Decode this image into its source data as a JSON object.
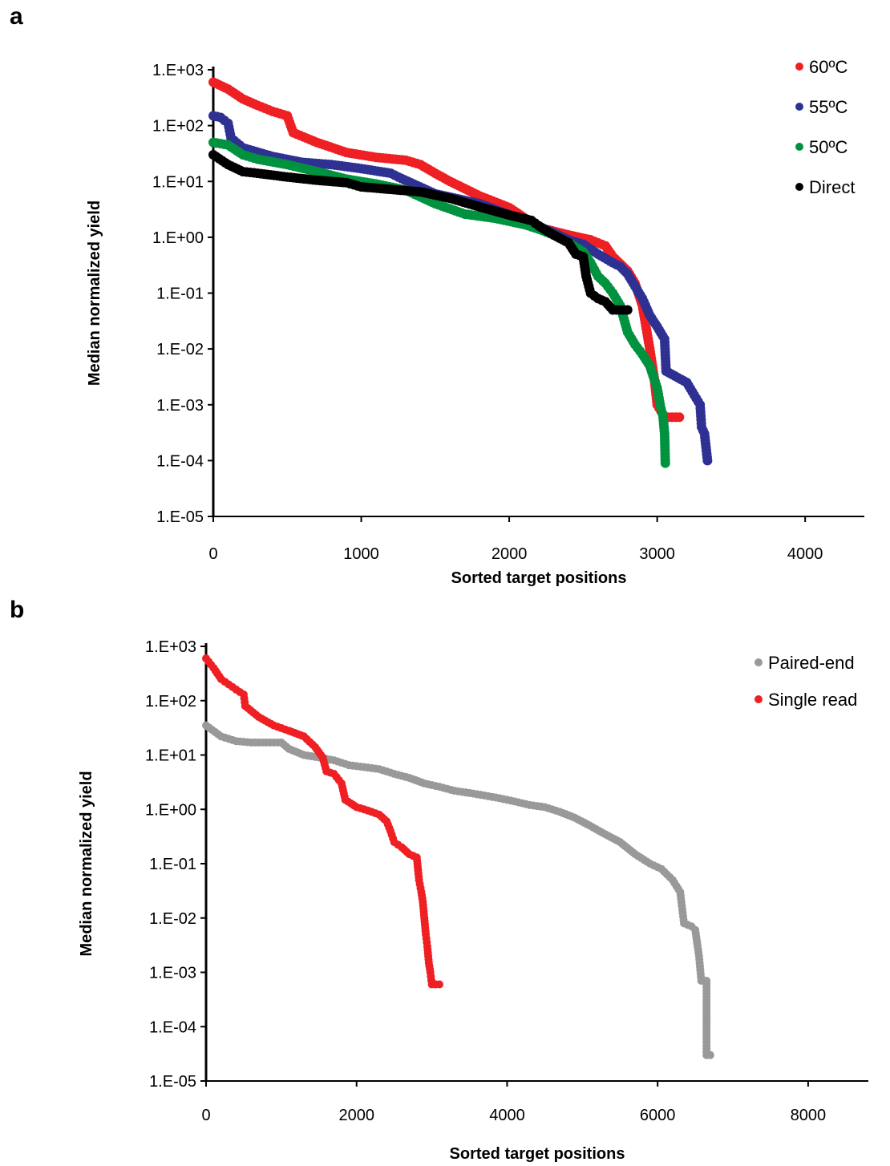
{
  "chart_data": [
    {
      "panel_label": "a",
      "type": "scatter",
      "xlabel": "Sorted target positions",
      "ylabel": "Median normalized yield",
      "xlim": [
        0,
        4400
      ],
      "xticks": [
        0,
        1000,
        2000,
        3000,
        4000
      ],
      "ylim": [
        1e-05,
        1000
      ],
      "yscale": "log",
      "yticks": [
        "1.E-05",
        "1.E-04",
        "1.E-03",
        "1.E-02",
        "1.E-01",
        "1.E+00",
        "1.E+01",
        "1.E+02",
        "1.E+03"
      ],
      "grid": false,
      "legend_position": "top-right",
      "series": [
        {
          "name": "60ºC",
          "color": "#ee2024",
          "points": [
            [
              0,
              600
            ],
            [
              100,
              450
            ],
            [
              200,
              300
            ],
            [
              300,
              230
            ],
            [
              400,
              180
            ],
            [
              500,
              150
            ],
            [
              540,
              75
            ],
            [
              700,
              50
            ],
            [
              900,
              33
            ],
            [
              1100,
              27
            ],
            [
              1300,
              24
            ],
            [
              1400,
              20
            ],
            [
              1500,
              14
            ],
            [
              1600,
              10
            ],
            [
              1800,
              5.5
            ],
            [
              2000,
              3.4
            ],
            [
              2200,
              1.5
            ],
            [
              2400,
              1.1
            ],
            [
              2550,
              0.9
            ],
            [
              2650,
              0.7
            ],
            [
              2700,
              0.45
            ],
            [
              2800,
              0.25
            ],
            [
              2850,
              0.15
            ],
            [
              2900,
              0.06
            ],
            [
              2950,
              0.01
            ],
            [
              2980,
              0.003
            ],
            [
              3000,
              0.001
            ],
            [
              3050,
              0.0006
            ],
            [
              3100,
              0.0006
            ],
            [
              3150,
              0.0006
            ]
          ]
        },
        {
          "name": "55ºC",
          "color": "#2e3192",
          "points": [
            [
              0,
              150
            ],
            [
              50,
              140
            ],
            [
              100,
              110
            ],
            [
              120,
              60
            ],
            [
              200,
              40
            ],
            [
              400,
              28
            ],
            [
              600,
              22
            ],
            [
              800,
              20
            ],
            [
              1000,
              17
            ],
            [
              1200,
              14
            ],
            [
              1250,
              12
            ],
            [
              1500,
              6
            ],
            [
              1800,
              4
            ],
            [
              2100,
              2
            ],
            [
              2300,
              1.2
            ],
            [
              2400,
              0.9
            ],
            [
              2500,
              0.75
            ],
            [
              2600,
              0.5
            ],
            [
              2700,
              0.35
            ],
            [
              2750,
              0.3
            ],
            [
              2800,
              0.22
            ],
            [
              2900,
              0.08
            ],
            [
              2950,
              0.04
            ],
            [
              3000,
              0.025
            ],
            [
              3050,
              0.015
            ],
            [
              3060,
              0.004
            ],
            [
              3100,
              0.0035
            ],
            [
              3200,
              0.0025
            ],
            [
              3250,
              0.0015
            ],
            [
              3290,
              0.001
            ],
            [
              3300,
              0.0004
            ],
            [
              3320,
              0.0003
            ],
            [
              3340,
              0.0001
            ]
          ]
        },
        {
          "name": "50ºC",
          "color": "#00923f",
          "points": [
            [
              0,
              50
            ],
            [
              100,
              45
            ],
            [
              200,
              30
            ],
            [
              300,
              25
            ],
            [
              500,
              20
            ],
            [
              700,
              15
            ],
            [
              900,
              11
            ],
            [
              1100,
              9
            ],
            [
              1300,
              7
            ],
            [
              1500,
              4
            ],
            [
              1700,
              2.6
            ],
            [
              1900,
              2.2
            ],
            [
              2100,
              1.7
            ],
            [
              2200,
              1.4
            ],
            [
              2300,
              1.1
            ],
            [
              2400,
              0.8
            ],
            [
              2500,
              0.55
            ],
            [
              2550,
              0.35
            ],
            [
              2600,
              0.2
            ],
            [
              2650,
              0.15
            ],
            [
              2700,
              0.1
            ],
            [
              2750,
              0.06
            ],
            [
              2800,
              0.02
            ],
            [
              2850,
              0.012
            ],
            [
              2900,
              0.008
            ],
            [
              2950,
              0.005
            ],
            [
              3000,
              0.002
            ],
            [
              3020,
              0.001
            ],
            [
              3040,
              0.0006
            ],
            [
              3050,
              0.0003
            ],
            [
              3055,
              9e-05
            ]
          ]
        },
        {
          "name": "Direct",
          "color": "#000000",
          "points": [
            [
              0,
              30
            ],
            [
              100,
              20
            ],
            [
              200,
              15
            ],
            [
              300,
              14
            ],
            [
              500,
              12
            ],
            [
              700,
              10.5
            ],
            [
              900,
              9.5
            ],
            [
              1000,
              8
            ],
            [
              1200,
              7.2
            ],
            [
              1400,
              6.5
            ],
            [
              1600,
              5
            ],
            [
              1800,
              3.5
            ],
            [
              2000,
              2.5
            ],
            [
              2150,
              2
            ],
            [
              2200,
              1.6
            ],
            [
              2300,
              1.1
            ],
            [
              2400,
              0.8
            ],
            [
              2450,
              0.5
            ],
            [
              2500,
              0.45
            ],
            [
              2520,
              0.2
            ],
            [
              2550,
              0.1
            ],
            [
              2600,
              0.08
            ],
            [
              2650,
              0.07
            ],
            [
              2700,
              0.05
            ],
            [
              2800,
              0.05
            ]
          ]
        }
      ]
    },
    {
      "panel_label": "b",
      "type": "scatter",
      "xlabel": "Sorted target positions",
      "ylabel": "Median normalized yield",
      "xlim": [
        0,
        8800
      ],
      "xticks": [
        0,
        2000,
        4000,
        6000,
        8000
      ],
      "ylim": [
        1e-05,
        1000
      ],
      "yscale": "log",
      "yticks": [
        "1.E-05",
        "1.E-04",
        "1.E-03",
        "1.E-02",
        "1.E-01",
        "1.E+00",
        "1.E+01",
        "1.E+02",
        "1.E+03"
      ],
      "grid": false,
      "legend_position": "top-right",
      "series": [
        {
          "name": "Paired-end",
          "color": "#999999",
          "points": [
            [
              0,
              35
            ],
            [
              200,
              22
            ],
            [
              400,
              18
            ],
            [
              600,
              17
            ],
            [
              800,
              17
            ],
            [
              1000,
              17
            ],
            [
              1100,
              13
            ],
            [
              1300,
              10
            ],
            [
              1500,
              9
            ],
            [
              1700,
              8
            ],
            [
              1900,
              6.5
            ],
            [
              2100,
              6
            ],
            [
              2300,
              5.5
            ],
            [
              2500,
              4.5
            ],
            [
              2700,
              3.8
            ],
            [
              2900,
              3
            ],
            [
              3100,
              2.6
            ],
            [
              3300,
              2.2
            ],
            [
              3500,
              2
            ],
            [
              3700,
              1.8
            ],
            [
              3900,
              1.6
            ],
            [
              4100,
              1.4
            ],
            [
              4300,
              1.2
            ],
            [
              4500,
              1.1
            ],
            [
              4700,
              0.9
            ],
            [
              4900,
              0.7
            ],
            [
              5100,
              0.5
            ],
            [
              5300,
              0.35
            ],
            [
              5500,
              0.25
            ],
            [
              5700,
              0.15
            ],
            [
              5900,
              0.1
            ],
            [
              6050,
              0.08
            ],
            [
              6200,
              0.05
            ],
            [
              6300,
              0.03
            ],
            [
              6350,
              0.008
            ],
            [
              6450,
              0.007
            ],
            [
              6500,
              0.006
            ],
            [
              6550,
              0.002
            ],
            [
              6580,
              0.0007
            ],
            [
              6650,
              0.0007
            ],
            [
              6650,
              3e-05
            ],
            [
              6700,
              3e-05
            ]
          ]
        },
        {
          "name": "Single read",
          "color": "#ee2024",
          "points": [
            [
              0,
              600
            ],
            [
              100,
              400
            ],
            [
              200,
              250
            ],
            [
              300,
              200
            ],
            [
              400,
              160
            ],
            [
              500,
              130
            ],
            [
              520,
              80
            ],
            [
              700,
              50
            ],
            [
              900,
              35
            ],
            [
              1100,
              28
            ],
            [
              1300,
              22
            ],
            [
              1450,
              14
            ],
            [
              1550,
              9
            ],
            [
              1600,
              5
            ],
            [
              1700,
              4.5
            ],
            [
              1800,
              3
            ],
            [
              1850,
              1.5
            ],
            [
              2000,
              1.1
            ],
            [
              2100,
              1
            ],
            [
              2200,
              0.9
            ],
            [
              2300,
              0.8
            ],
            [
              2400,
              0.6
            ],
            [
              2450,
              0.4
            ],
            [
              2500,
              0.25
            ],
            [
              2600,
              0.2
            ],
            [
              2700,
              0.15
            ],
            [
              2800,
              0.13
            ],
            [
              2830,
              0.05
            ],
            [
              2860,
              0.03
            ],
            [
              2880,
              0.02
            ],
            [
              2900,
              0.01
            ],
            [
              2920,
              0.005
            ],
            [
              2940,
              0.003
            ],
            [
              2960,
              0.0015
            ],
            [
              2980,
              0.001
            ],
            [
              3000,
              0.0006
            ],
            [
              3050,
              0.0006
            ],
            [
              3100,
              0.0006
            ]
          ]
        }
      ]
    }
  ]
}
